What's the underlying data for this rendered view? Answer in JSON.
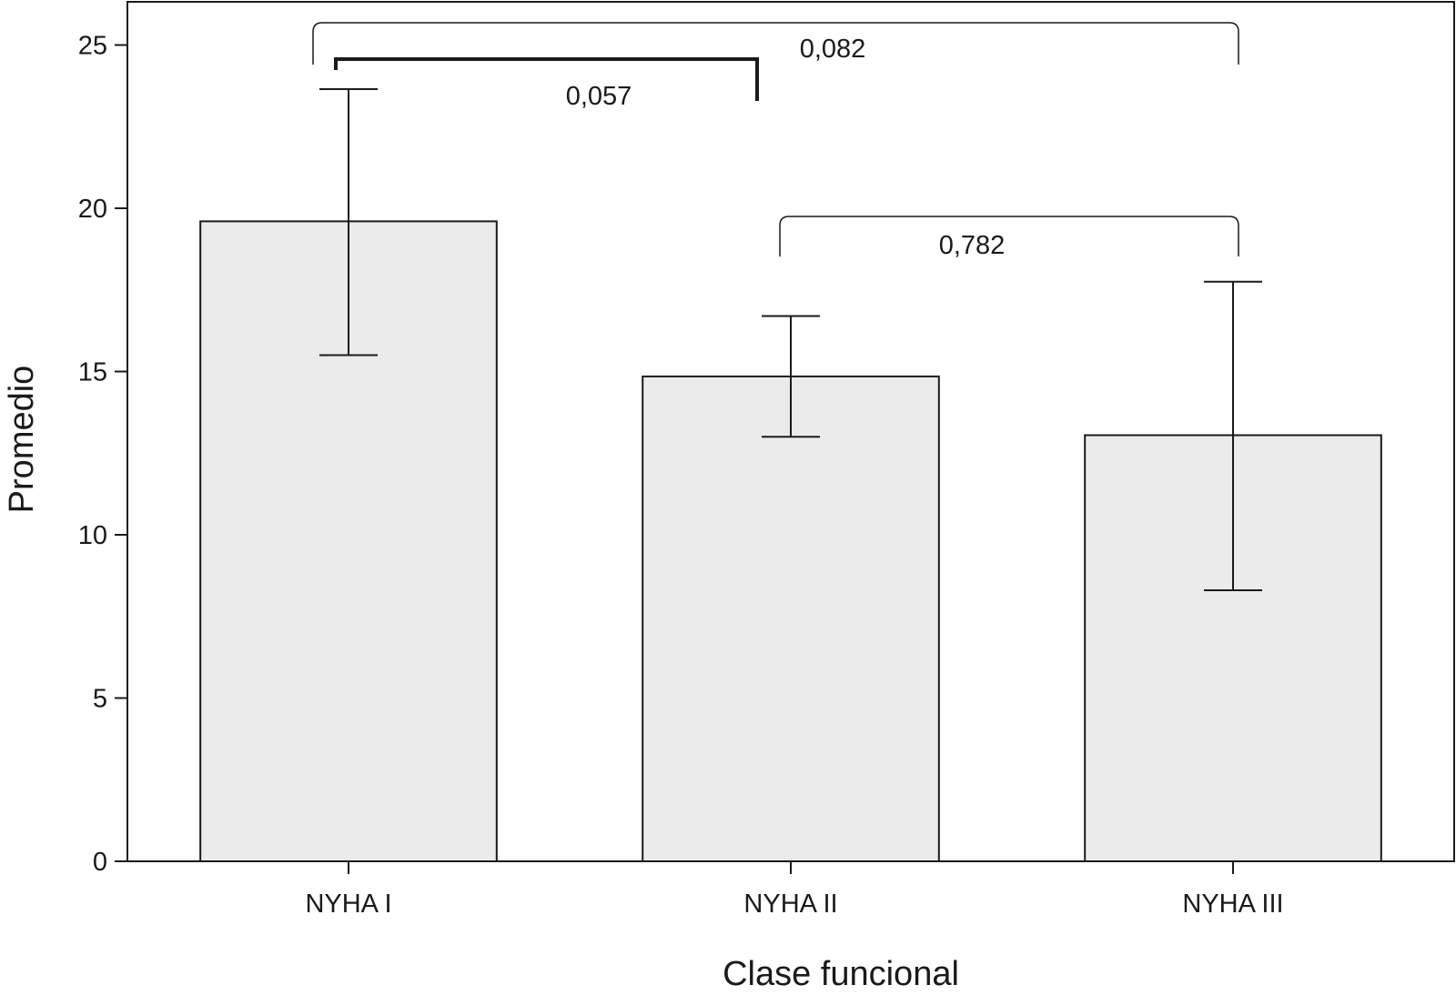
{
  "chart_data": {
    "type": "bar",
    "title": "",
    "xlabel": "Clase funcional",
    "ylabel": "Promedio",
    "ylim": [
      0,
      26.5
    ],
    "yticks": [
      0,
      5,
      10,
      15,
      20,
      25
    ],
    "grid": false,
    "categories": [
      "NYHA I",
      "NYHA II",
      "NYHA III"
    ],
    "values": [
      19.6,
      14.85,
      13.05
    ],
    "error_low": [
      15.5,
      13.0,
      8.3
    ],
    "error_high": [
      23.65,
      16.7,
      17.75
    ],
    "bar_color": "#ebebeb",
    "comparisons": [
      {
        "from": 0,
        "to": 1,
        "p": "0,057",
        "emphasis": true
      },
      {
        "from": 0,
        "to": 2,
        "p": "0,082",
        "emphasis": false
      },
      {
        "from": 1,
        "to": 2,
        "p": "0,782",
        "emphasis": false
      }
    ]
  }
}
